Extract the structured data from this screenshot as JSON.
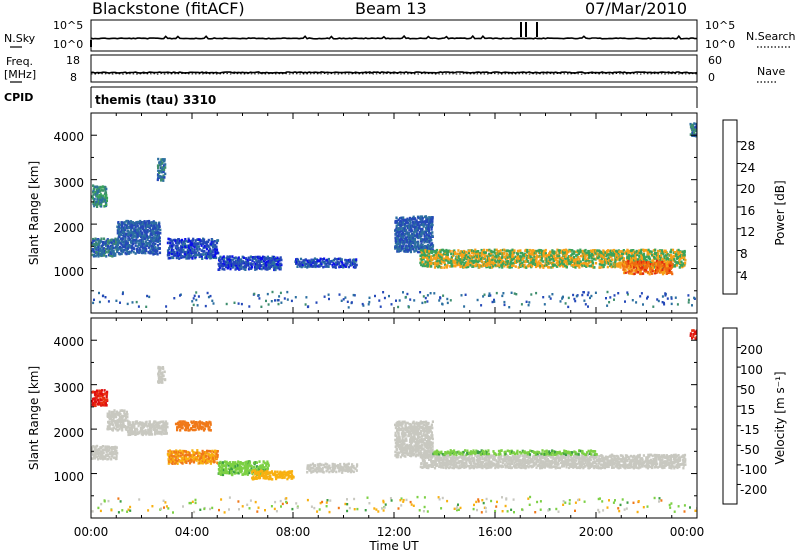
{
  "header": {
    "station": "Blackstone (fitACF)",
    "beam": "Beam 13",
    "date": "07/Mar/2010"
  },
  "strip_panels": {
    "nsky_label": "N.Sky",
    "nsearch_label": "N.Search",
    "nsky_ticks": [
      "10^5",
      "10^0"
    ],
    "nsearch_ticks": [
      "10^5",
      "10^0"
    ],
    "freq_label": "Freq.",
    "freq_unit": "[MHz]",
    "freq_ticks": [
      "18",
      "8"
    ],
    "nave_label": "Nave",
    "nave_ticks": [
      "60",
      "0"
    ],
    "cpid_label": "CPID",
    "cpid_value": "themis (tau) 3310"
  },
  "x_axis": {
    "label": "Time UT",
    "tick_labels": [
      "00:00",
      "04:00",
      "08:00",
      "12:00",
      "16:00",
      "20:00",
      "00:00"
    ]
  },
  "power_panel": {
    "ylabel": "Slant Range [km]",
    "yticks": [
      "4000",
      "3000",
      "2000",
      "1000"
    ],
    "colorbar_label": "Power [dB]",
    "colorbar_ticks": [
      "28",
      "24",
      "20",
      "16",
      "12",
      "8",
      "4"
    ],
    "colors": [
      "#0a10e8",
      "#2448b8",
      "#2c6fa0",
      "#3e8e6e",
      "#3aa35a",
      "#f7a018",
      "#f06a10",
      "#e02a0c"
    ]
  },
  "velocity_panel": {
    "ylabel": "Slant Range [km]",
    "yticks": [
      "4000",
      "3000",
      "2000",
      "1000"
    ],
    "colorbar_label": "Velocity [m s⁻¹]",
    "colorbar_ticks": [
      "200",
      "100",
      "50",
      "15",
      "-15",
      "-50",
      "-100",
      "-200"
    ],
    "colors": [
      "#1030c8",
      "#2a70b0",
      "#3c9e44",
      "#7cd044",
      "#c8c8c0",
      "#f8b010",
      "#f07818",
      "#e83010",
      "#e01010"
    ],
    "ground_scatter_color": "#c8c8c0"
  },
  "chart_data": [
    {
      "type": "heatmap",
      "title": "",
      "xlabel": "Time UT",
      "ylabel": "Slant Range [km]",
      "xlim": [
        0,
        24
      ],
      "ylim": [
        0,
        4500
      ],
      "colorbar": "Power [dB]",
      "colorbar_range": [
        0,
        32
      ],
      "regions": [
        {
          "t": [
            0.0,
            1.0
          ],
          "r": [
            1300,
            1700
          ],
          "value": 10
        },
        {
          "t": [
            0.0,
            0.6
          ],
          "r": [
            2400,
            2900
          ],
          "value": 14
        },
        {
          "t": [
            1.0,
            2.7
          ],
          "r": [
            1700,
            2100
          ],
          "value": 8
        },
        {
          "t": [
            1.0,
            2.7
          ],
          "r": [
            1350,
            1700
          ],
          "value": 8
        },
        {
          "t": [
            2.6,
            2.9
          ],
          "r": [
            3000,
            3500
          ],
          "value": 10
        },
        {
          "t": [
            3.0,
            5.0
          ],
          "r": [
            1250,
            1700
          ],
          "value": 6
        },
        {
          "t": [
            5.0,
            7.5
          ],
          "r": [
            1000,
            1300
          ],
          "value": 6
        },
        {
          "t": [
            8.0,
            10.5
          ],
          "r": [
            1050,
            1250
          ],
          "value": 6
        },
        {
          "t": [
            12.0,
            13.5
          ],
          "r": [
            1400,
            2200
          ],
          "value": 8
        },
        {
          "t": [
            13.0,
            23.5
          ],
          "r": [
            1050,
            1450
          ],
          "value": 20
        },
        {
          "t": [
            21.0,
            23.0
          ],
          "r": [
            900,
            1200
          ],
          "value": 26
        },
        {
          "t": [
            23.7,
            24.0
          ],
          "r": [
            4000,
            4300
          ],
          "value": 10
        }
      ]
    },
    {
      "type": "heatmap",
      "title": "",
      "xlabel": "Time UT",
      "ylabel": "Slant Range [km]",
      "xlim": [
        0,
        24
      ],
      "ylim": [
        0,
        4500
      ],
      "colorbar": "Velocity [m s⁻¹]",
      "colorbar_range": [
        -250,
        250
      ],
      "regions": [
        {
          "t": [
            0.0,
            0.6
          ],
          "r": [
            2550,
            2900
          ],
          "value": -200
        },
        {
          "t": [
            0.0,
            1.0
          ],
          "r": [
            1350,
            1650
          ],
          "value": 0
        },
        {
          "t": [
            0.6,
            1.4
          ],
          "r": [
            2000,
            2450
          ],
          "value": 0
        },
        {
          "t": [
            1.4,
            3.0
          ],
          "r": [
            1900,
            2200
          ],
          "value": 0
        },
        {
          "t": [
            2.6,
            2.9
          ],
          "r": [
            3050,
            3450
          ],
          "value": 0
        },
        {
          "t": [
            3.0,
            5.0
          ],
          "r": [
            1250,
            1550
          ],
          "value": -50
        },
        {
          "t": [
            3.3,
            4.7
          ],
          "r": [
            2000,
            2200
          ],
          "value": -75
        },
        {
          "t": [
            5.0,
            7.0
          ],
          "r": [
            1000,
            1300
          ],
          "value": 40
        },
        {
          "t": [
            6.3,
            8.0
          ],
          "r": [
            900,
            1100
          ],
          "value": -30
        },
        {
          "t": [
            8.5,
            10.5
          ],
          "r": [
            1050,
            1250
          ],
          "value": 0
        },
        {
          "t": [
            12.0,
            13.5
          ],
          "r": [
            1400,
            2200
          ],
          "value": 0
        },
        {
          "t": [
            13.0,
            23.5
          ],
          "r": [
            1150,
            1450
          ],
          "value": 0
        },
        {
          "t": [
            13.5,
            20.0
          ],
          "r": [
            1450,
            1550
          ],
          "value": 40
        },
        {
          "t": [
            23.7,
            24.0
          ],
          "r": [
            4050,
            4250
          ],
          "value": -200
        }
      ]
    }
  ]
}
